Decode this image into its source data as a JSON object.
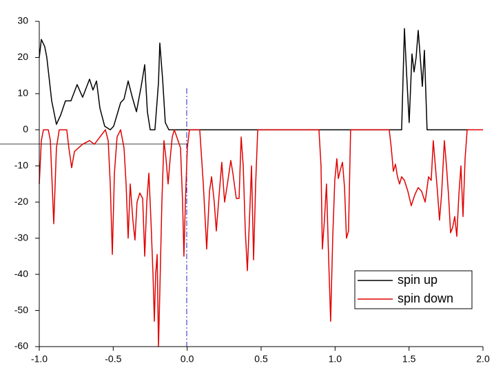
{
  "chart_data": {
    "type": "line",
    "xlim": [
      -1,
      2
    ],
    "ylim": [
      -60,
      30
    ],
    "xticks": [
      {
        "value": -1,
        "label": "-1.0"
      },
      {
        "value": -0.5,
        "label": "-0.5"
      },
      {
        "value": 0,
        "label": "0.0"
      },
      {
        "value": 0.5,
        "label": "0.5"
      },
      {
        "value": 1,
        "label": "1.0"
      },
      {
        "value": 1.5,
        "label": "1.5"
      },
      {
        "value": 2,
        "label": "2.0"
      }
    ],
    "yticks": [
      30,
      20,
      10,
      0,
      -10,
      -20,
      -30,
      -40,
      -50,
      -60
    ],
    "legend": "lower right",
    "series": [
      {
        "name": "spin up",
        "color": "#000000",
        "x": [
          -1.0,
          -0.986,
          -0.963,
          -0.949,
          -0.916,
          -0.884,
          -0.856,
          -0.823,
          -0.786,
          -0.744,
          -0.707,
          -0.66,
          -0.637,
          -0.613,
          -0.59,
          -0.558,
          -0.52,
          -0.497,
          -0.45,
          -0.427,
          -0.399,
          -0.371,
          -0.343,
          -0.311,
          -0.287,
          -0.269,
          -0.25,
          -0.218,
          -0.194,
          -0.185,
          -0.166,
          -0.148,
          -0.124,
          1.45,
          1.469,
          1.483,
          1.501,
          1.52,
          1.534,
          1.548,
          1.562,
          1.576,
          1.59,
          1.604,
          1.622,
          1.902
        ],
        "values": [
          20,
          25,
          23,
          20,
          8,
          1.5,
          4,
          8,
          8,
          12.5,
          9,
          14,
          11,
          13.5,
          6,
          1,
          0,
          1,
          7.5,
          8.5,
          13.5,
          9,
          5,
          12,
          18,
          5,
          0,
          0,
          13,
          24,
          14,
          2,
          0,
          0,
          28,
          16,
          2,
          21,
          16,
          20,
          27.5,
          20,
          12,
          22,
          0,
          0
        ]
      },
      {
        "name": "spin down",
        "color": "#e00000",
        "x": [
          -1.0,
          -0.986,
          -0.972,
          -0.939,
          -0.925,
          -0.902,
          -0.884,
          -0.865,
          -0.814,
          -0.8,
          -0.781,
          -0.762,
          -0.707,
          -0.66,
          -0.627,
          -0.59,
          -0.553,
          -0.534,
          -0.52,
          -0.506,
          -0.492,
          -0.474,
          -0.45,
          -0.427,
          -0.413,
          -0.399,
          -0.385,
          -0.367,
          -0.353,
          -0.339,
          -0.32,
          -0.301,
          -0.287,
          -0.273,
          -0.259,
          -0.245,
          -0.231,
          -0.222,
          -0.213,
          -0.203,
          -0.194,
          -0.185,
          -0.171,
          -0.157,
          -0.143,
          -0.129,
          -0.115,
          -0.101,
          -0.087,
          -0.045,
          -0.031,
          -0.022,
          -0.012,
          0.001,
          0.015,
          0.085,
          0.109,
          0.132,
          0.151,
          0.165,
          0.183,
          0.197,
          0.216,
          0.234,
          0.253,
          0.272,
          0.295,
          0.309,
          0.332,
          0.351,
          0.365,
          0.379,
          0.393,
          0.407,
          0.421,
          0.435,
          0.449,
          0.463,
          0.477,
          0.891,
          0.905,
          0.914,
          0.928,
          0.942,
          0.956,
          0.97,
          0.984,
          0.998,
          1.012,
          1.022,
          1.036,
          1.05,
          1.064,
          1.077,
          1.091,
          1.105,
          1.366,
          1.38,
          1.394,
          1.408,
          1.422,
          1.436,
          1.45,
          1.469,
          1.492,
          1.515,
          1.539,
          1.562,
          1.585,
          1.609,
          1.632,
          1.65,
          1.664,
          1.678,
          1.692,
          1.706,
          1.72,
          1.739,
          1.753,
          1.767,
          1.781,
          1.795,
          1.809,
          1.823,
          1.837,
          1.851,
          1.865,
          1.879,
          1.893,
          2.0
        ],
        "values": [
          -15,
          -3,
          0,
          0,
          -3,
          -26,
          -5,
          0,
          0,
          -5,
          -10.5,
          -6,
          -4,
          -3,
          -4,
          -2,
          0,
          -3,
          -15,
          -34.5,
          -12,
          -2,
          0,
          -5,
          -15,
          -30,
          -15,
          -25,
          -30.5,
          -20,
          -17.5,
          -19,
          -35,
          -20,
          -12,
          -25,
          -40,
          -53,
          -40,
          -34.5,
          -60,
          -45,
          -20,
          -3,
          -8,
          -15,
          -8,
          -2,
          0,
          -5,
          -20,
          -35,
          -20,
          -5,
          0,
          0,
          -15,
          -33,
          -17,
          -13,
          -20,
          -28,
          -18,
          -9,
          -20,
          -15,
          -8.5,
          -12,
          -19,
          -19,
          -2,
          -10,
          -28,
          -39,
          -25,
          -10,
          -36,
          -15,
          0,
          0,
          -10,
          -33,
          -25,
          -15,
          -35,
          -53,
          -30,
          -14,
          -8,
          -13.5,
          -11,
          -9,
          -16,
          -30,
          -28,
          0,
          0,
          -5,
          -11.5,
          -9.5,
          -13,
          -15,
          -13,
          -14,
          -17,
          -21,
          -18,
          -16,
          -17,
          -20,
          -13,
          -14,
          -3,
          -10,
          -17,
          -25,
          -18,
          -3,
          -10,
          -18,
          -28.5,
          -27,
          -24,
          -29.5,
          -18,
          -10,
          -24,
          -8,
          0,
          0
        ]
      }
    ]
  }
}
